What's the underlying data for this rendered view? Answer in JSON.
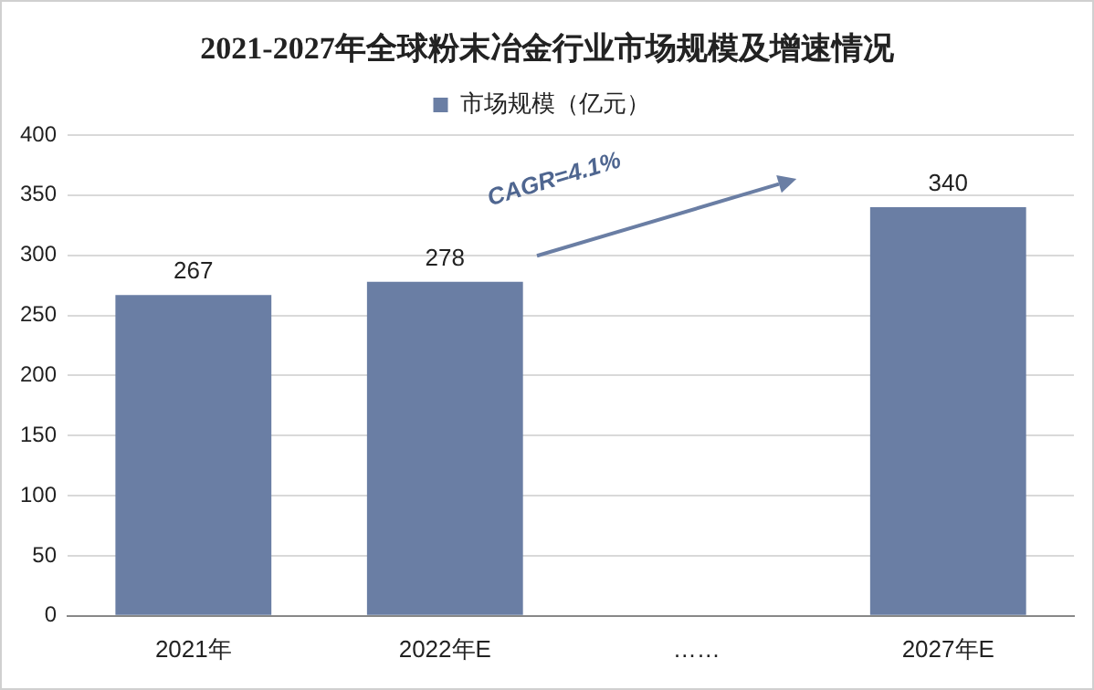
{
  "chart_data": {
    "type": "bar",
    "title": "2021-2027年全球粉末冶金行业市场规模及增速情况",
    "categories": [
      "2021年",
      "2022年E",
      "……",
      "2027年E"
    ],
    "series": [
      {
        "name": "市场规模（亿元）",
        "color": "#6a7ea4",
        "values": [
          267,
          278,
          null,
          340
        ]
      }
    ],
    "ylim": [
      0,
      400
    ],
    "yticks": [
      0,
      50,
      100,
      150,
      200,
      250,
      300,
      350,
      400
    ],
    "grid": "y",
    "legend": "top",
    "data_labels": true,
    "annotations": [
      "CAGR=4.1%"
    ]
  }
}
